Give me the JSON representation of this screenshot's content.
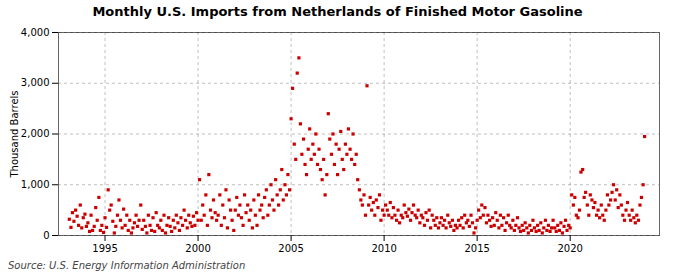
{
  "chart_data": {
    "type": "scatter",
    "title": "Monthly U.S. Imports from Netherlands of Finished Motor Gasoline",
    "ylabel": "Thousand Barrels",
    "source": "Source: U.S. Energy Information Administration",
    "color": "#cc0000",
    "marker": "square",
    "grid": true,
    "xlim": [
      1992.5,
      2024.8
    ],
    "ylim": [
      0,
      4000
    ],
    "xticks": [
      1995,
      2000,
      2005,
      2010,
      2015,
      2020
    ],
    "yticks": [
      0,
      {
        "value": 1000,
        "label": "1,000"
      },
      {
        "value": 2000,
        "label": "2,000"
      },
      {
        "value": 3000,
        "label": "3,000"
      },
      {
        "value": 4000,
        "label": "4,000"
      }
    ],
    "x": [
      1993.08,
      1993.17,
      1993.25,
      1993.33,
      1993.42,
      1993.5,
      1993.58,
      1993.67,
      1993.75,
      1993.83,
      1993.92,
      1994.0,
      1994.08,
      1994.17,
      1994.25,
      1994.33,
      1994.42,
      1994.5,
      1994.58,
      1994.67,
      1994.75,
      1994.83,
      1994.92,
      1995.0,
      1995.08,
      1995.17,
      1995.25,
      1995.33,
      1995.42,
      1995.5,
      1995.58,
      1995.67,
      1995.75,
      1995.83,
      1995.92,
      1996.0,
      1996.08,
      1996.17,
      1996.25,
      1996.33,
      1996.42,
      1996.5,
      1996.58,
      1996.67,
      1996.75,
      1996.83,
      1996.92,
      1997.0,
      1997.08,
      1997.17,
      1997.25,
      1997.33,
      1997.42,
      1997.5,
      1997.58,
      1997.67,
      1997.75,
      1997.83,
      1997.92,
      1998.0,
      1998.08,
      1998.17,
      1998.25,
      1998.33,
      1998.42,
      1998.5,
      1998.58,
      1998.67,
      1998.75,
      1998.83,
      1998.92,
      1999.0,
      1999.08,
      1999.17,
      1999.25,
      1999.33,
      1999.42,
      1999.5,
      1999.58,
      1999.67,
      1999.75,
      1999.83,
      1999.92,
      2000.0,
      2000.08,
      2000.17,
      2000.25,
      2000.33,
      2000.42,
      2000.5,
      2000.58,
      2000.67,
      2000.75,
      2000.83,
      2000.92,
      2001.0,
      2001.08,
      2001.17,
      2001.25,
      2001.33,
      2001.42,
      2001.5,
      2001.58,
      2001.67,
      2001.75,
      2001.83,
      2001.92,
      2002.0,
      2002.08,
      2002.17,
      2002.25,
      2002.33,
      2002.42,
      2002.5,
      2002.58,
      2002.67,
      2002.75,
      2002.83,
      2002.92,
      2003.0,
      2003.08,
      2003.17,
      2003.25,
      2003.33,
      2003.42,
      2003.5,
      2003.58,
      2003.67,
      2003.75,
      2003.83,
      2003.92,
      2004.0,
      2004.08,
      2004.17,
      2004.25,
      2004.33,
      2004.42,
      2004.5,
      2004.58,
      2004.67,
      2004.75,
      2004.83,
      2004.92,
      2005.0,
      2005.08,
      2005.17,
      2005.25,
      2005.33,
      2005.42,
      2005.5,
      2005.58,
      2005.67,
      2005.75,
      2005.83,
      2005.92,
      2006.0,
      2006.08,
      2006.17,
      2006.25,
      2006.33,
      2006.42,
      2006.5,
      2006.58,
      2006.67,
      2006.75,
      2006.83,
      2006.92,
      2007.0,
      2007.08,
      2007.17,
      2007.25,
      2007.33,
      2007.42,
      2007.5,
      2007.58,
      2007.67,
      2007.75,
      2007.83,
      2007.92,
      2008.0,
      2008.08,
      2008.17,
      2008.25,
      2008.33,
      2008.42,
      2008.5,
      2008.58,
      2008.67,
      2008.75,
      2008.83,
      2008.92,
      2009.0,
      2009.08,
      2009.17,
      2009.25,
      2009.33,
      2009.42,
      2009.5,
      2009.58,
      2009.67,
      2009.75,
      2009.83,
      2009.92,
      2010.0,
      2010.08,
      2010.17,
      2010.25,
      2010.33,
      2010.42,
      2010.5,
      2010.58,
      2010.67,
      2010.75,
      2010.83,
      2010.92,
      2011.0,
      2011.08,
      2011.17,
      2011.25,
      2011.33,
      2011.42,
      2011.5,
      2011.58,
      2011.67,
      2011.75,
      2011.83,
      2011.92,
      2012.0,
      2012.08,
      2012.17,
      2012.25,
      2012.33,
      2012.42,
      2012.5,
      2012.58,
      2012.67,
      2012.75,
      2012.83,
      2012.92,
      2013.0,
      2013.08,
      2013.17,
      2013.25,
      2013.33,
      2013.42,
      2013.5,
      2013.58,
      2013.67,
      2013.75,
      2013.83,
      2013.92,
      2014.0,
      2014.08,
      2014.17,
      2014.25,
      2014.33,
      2014.42,
      2014.5,
      2014.58,
      2014.67,
      2014.75,
      2014.83,
      2014.92,
      2015.0,
      2015.08,
      2015.17,
      2015.25,
      2015.33,
      2015.42,
      2015.5,
      2015.58,
      2015.67,
      2015.75,
      2015.83,
      2015.92,
      2016.0,
      2016.08,
      2016.17,
      2016.25,
      2016.33,
      2016.42,
      2016.5,
      2016.58,
      2016.67,
      2016.75,
      2016.83,
      2016.92,
      2017.0,
      2017.08,
      2017.17,
      2017.25,
      2017.33,
      2017.42,
      2017.5,
      2017.58,
      2017.67,
      2017.75,
      2017.83,
      2017.92,
      2018.0,
      2018.08,
      2018.17,
      2018.25,
      2018.33,
      2018.42,
      2018.5,
      2018.58,
      2018.67,
      2018.75,
      2018.83,
      2018.92,
      2019.0,
      2019.08,
      2019.17,
      2019.25,
      2019.33,
      2019.42,
      2019.5,
      2019.58,
      2019.67,
      2019.75,
      2019.83,
      2019.92,
      2020.0,
      2020.08,
      2020.17,
      2020.25,
      2020.33,
      2020.42,
      2020.5,
      2020.58,
      2020.67,
      2020.75,
      2020.83,
      2020.92,
      2021.0,
      2021.08,
      2021.17,
      2021.25,
      2021.33,
      2021.42,
      2021.5,
      2021.58,
      2021.67,
      2021.75,
      2021.83,
      2021.92,
      2022.0,
      2022.08,
      2022.17,
      2022.25,
      2022.33,
      2022.42,
      2022.5,
      2022.58,
      2022.67,
      2022.75,
      2022.83,
      2022.92,
      2023.0,
      2023.08,
      2023.17,
      2023.25,
      2023.33,
      2023.42,
      2023.5,
      2023.58,
      2023.67,
      2023.75,
      2023.83,
      2023.92,
      2024.0
    ],
    "values": [
      320,
      160,
      450,
      280,
      500,
      380,
      200,
      600,
      150,
      350,
      420,
      180,
      250,
      80,
      400,
      100,
      180,
      550,
      300,
      750,
      100,
      200,
      60,
      350,
      160,
      900,
      500,
      600,
      280,
      50,
      180,
      400,
      700,
      300,
      150,
      520,
      200,
      400,
      100,
      300,
      50,
      150,
      250,
      400,
      180,
      300,
      600,
      120,
      300,
      180,
      50,
      400,
      200,
      100,
      350,
      80,
      450,
      200,
      150,
      300,
      100,
      400,
      50,
      200,
      350,
      180,
      80,
      300,
      150,
      400,
      250,
      100,
      350,
      200,
      500,
      300,
      150,
      400,
      250,
      180,
      380,
      200,
      450,
      300,
      1100,
      300,
      600,
      400,
      800,
      200,
      1200,
      500,
      350,
      700,
      450,
      300,
      400,
      800,
      200,
      600,
      350,
      900,
      150,
      700,
      500,
      300,
      100,
      500,
      750,
      400,
      600,
      350,
      200,
      800,
      450,
      600,
      300,
      500,
      150,
      700,
      400,
      200,
      800,
      500,
      600,
      350,
      750,
      900,
      400,
      600,
      1000,
      700,
      500,
      1100,
      800,
      600,
      900,
      1300,
      700,
      1000,
      800,
      1200,
      900,
      2300,
      2900,
      1800,
      1500,
      3200,
      3500,
      2200,
      1600,
      1900,
      1400,
      1200,
      1700,
      2100,
      1500,
      1800,
      1600,
      2000,
      1400,
      1700,
      1300,
      1100,
      1500,
      800,
      1200,
      2400,
      1900,
      1600,
      2000,
      1400,
      1800,
      1200,
      1700,
      2050,
      1500,
      1300,
      1800,
      1600,
      2100,
      1700,
      1500,
      2000,
      1400,
      1600,
      1100,
      900,
      700,
      600,
      800,
      400,
      2950,
      600,
      750,
      500,
      650,
      400,
      700,
      550,
      800,
      300,
      500,
      400,
      600,
      500,
      400,
      650,
      350,
      550,
      400,
      300,
      500,
      250,
      400,
      350,
      600,
      450,
      380,
      520,
      300,
      450,
      600,
      400,
      350,
      500,
      250,
      400,
      350,
      200,
      450,
      300,
      500,
      150,
      400,
      300,
      200,
      350,
      150,
      250,
      350,
      200,
      300,
      150,
      400,
      250,
      180,
      300,
      100,
      200,
      150,
      300,
      200,
      350,
      150,
      400,
      250,
      300,
      180,
      400,
      250,
      50,
      150,
      300,
      500,
      350,
      600,
      400,
      550,
      250,
      400,
      300,
      180,
      350,
      200,
      450,
      300,
      150,
      400,
      200,
      350,
      100,
      250,
      400,
      200,
      150,
      300,
      100,
      200,
      350,
      150,
      80,
      200,
      100,
      250,
      150,
      50,
      200,
      100,
      300,
      150,
      80,
      200,
      100,
      250,
      50,
      150,
      300,
      100,
      200,
      80,
      150,
      300,
      150,
      80,
      200,
      100,
      250,
      50,
      180,
      300,
      100,
      200,
      150,
      800,
      600,
      750,
      400,
      350,
      500,
      1250,
      1300,
      750,
      850,
      600,
      400,
      800,
      700,
      550,
      650,
      400,
      500,
      350,
      600,
      400,
      300,
      500,
      800,
      600,
      700,
      850,
      1000,
      700,
      900,
      550,
      800,
      600,
      400,
      300,
      500,
      650,
      400,
      300,
      500,
      350,
      250,
      400,
      300,
      600,
      750,
      1000,
      1950
    ]
  }
}
